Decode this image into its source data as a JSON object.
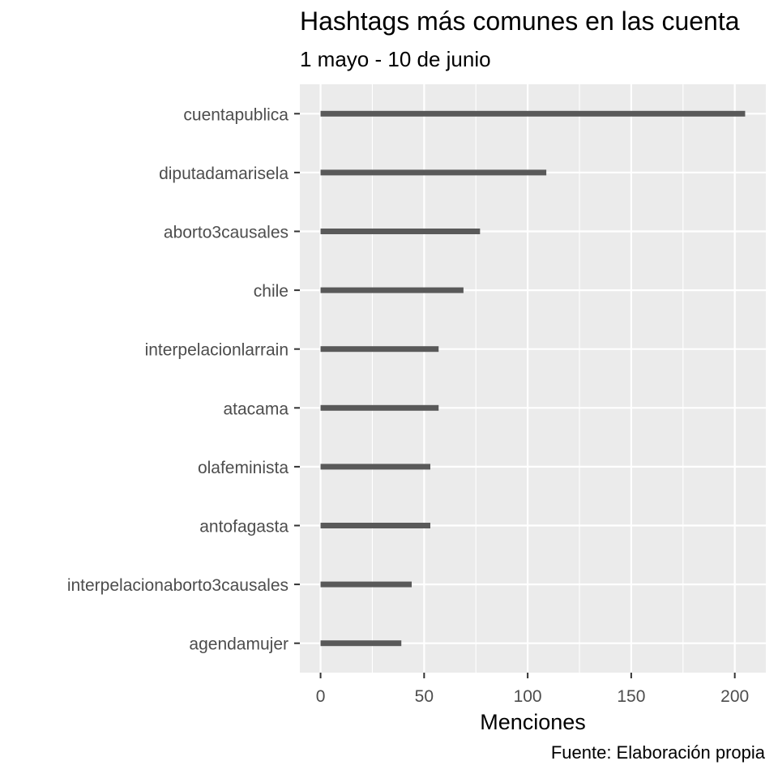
{
  "chart_data": {
    "type": "bar",
    "orientation": "horizontal",
    "title": "Hashtags más comunes en las cuenta",
    "subtitle": "1 mayo - 10 de junio",
    "xlabel": "Menciones",
    "ylabel": "",
    "caption": "Fuente: Elaboración propia",
    "categories": [
      "cuentapublica",
      "diputadamarisela",
      "aborto3causales",
      "chile",
      "interpelacionlarrain",
      "atacama",
      "olafeminista",
      "antofagasta",
      "interpelacionaborto3causales",
      "agendamujer"
    ],
    "values": [
      205,
      109,
      77,
      69,
      57,
      57,
      53,
      53,
      44,
      39
    ],
    "xlim": [
      -10,
      215
    ],
    "xticks": [
      "0",
      "50",
      "100",
      "150",
      "200"
    ],
    "grid": true,
    "colors": {
      "bar": "#595959",
      "panel": "#ebebeb",
      "grid_major": "#ffffff",
      "axis_text": "#4d4d4d"
    }
  }
}
